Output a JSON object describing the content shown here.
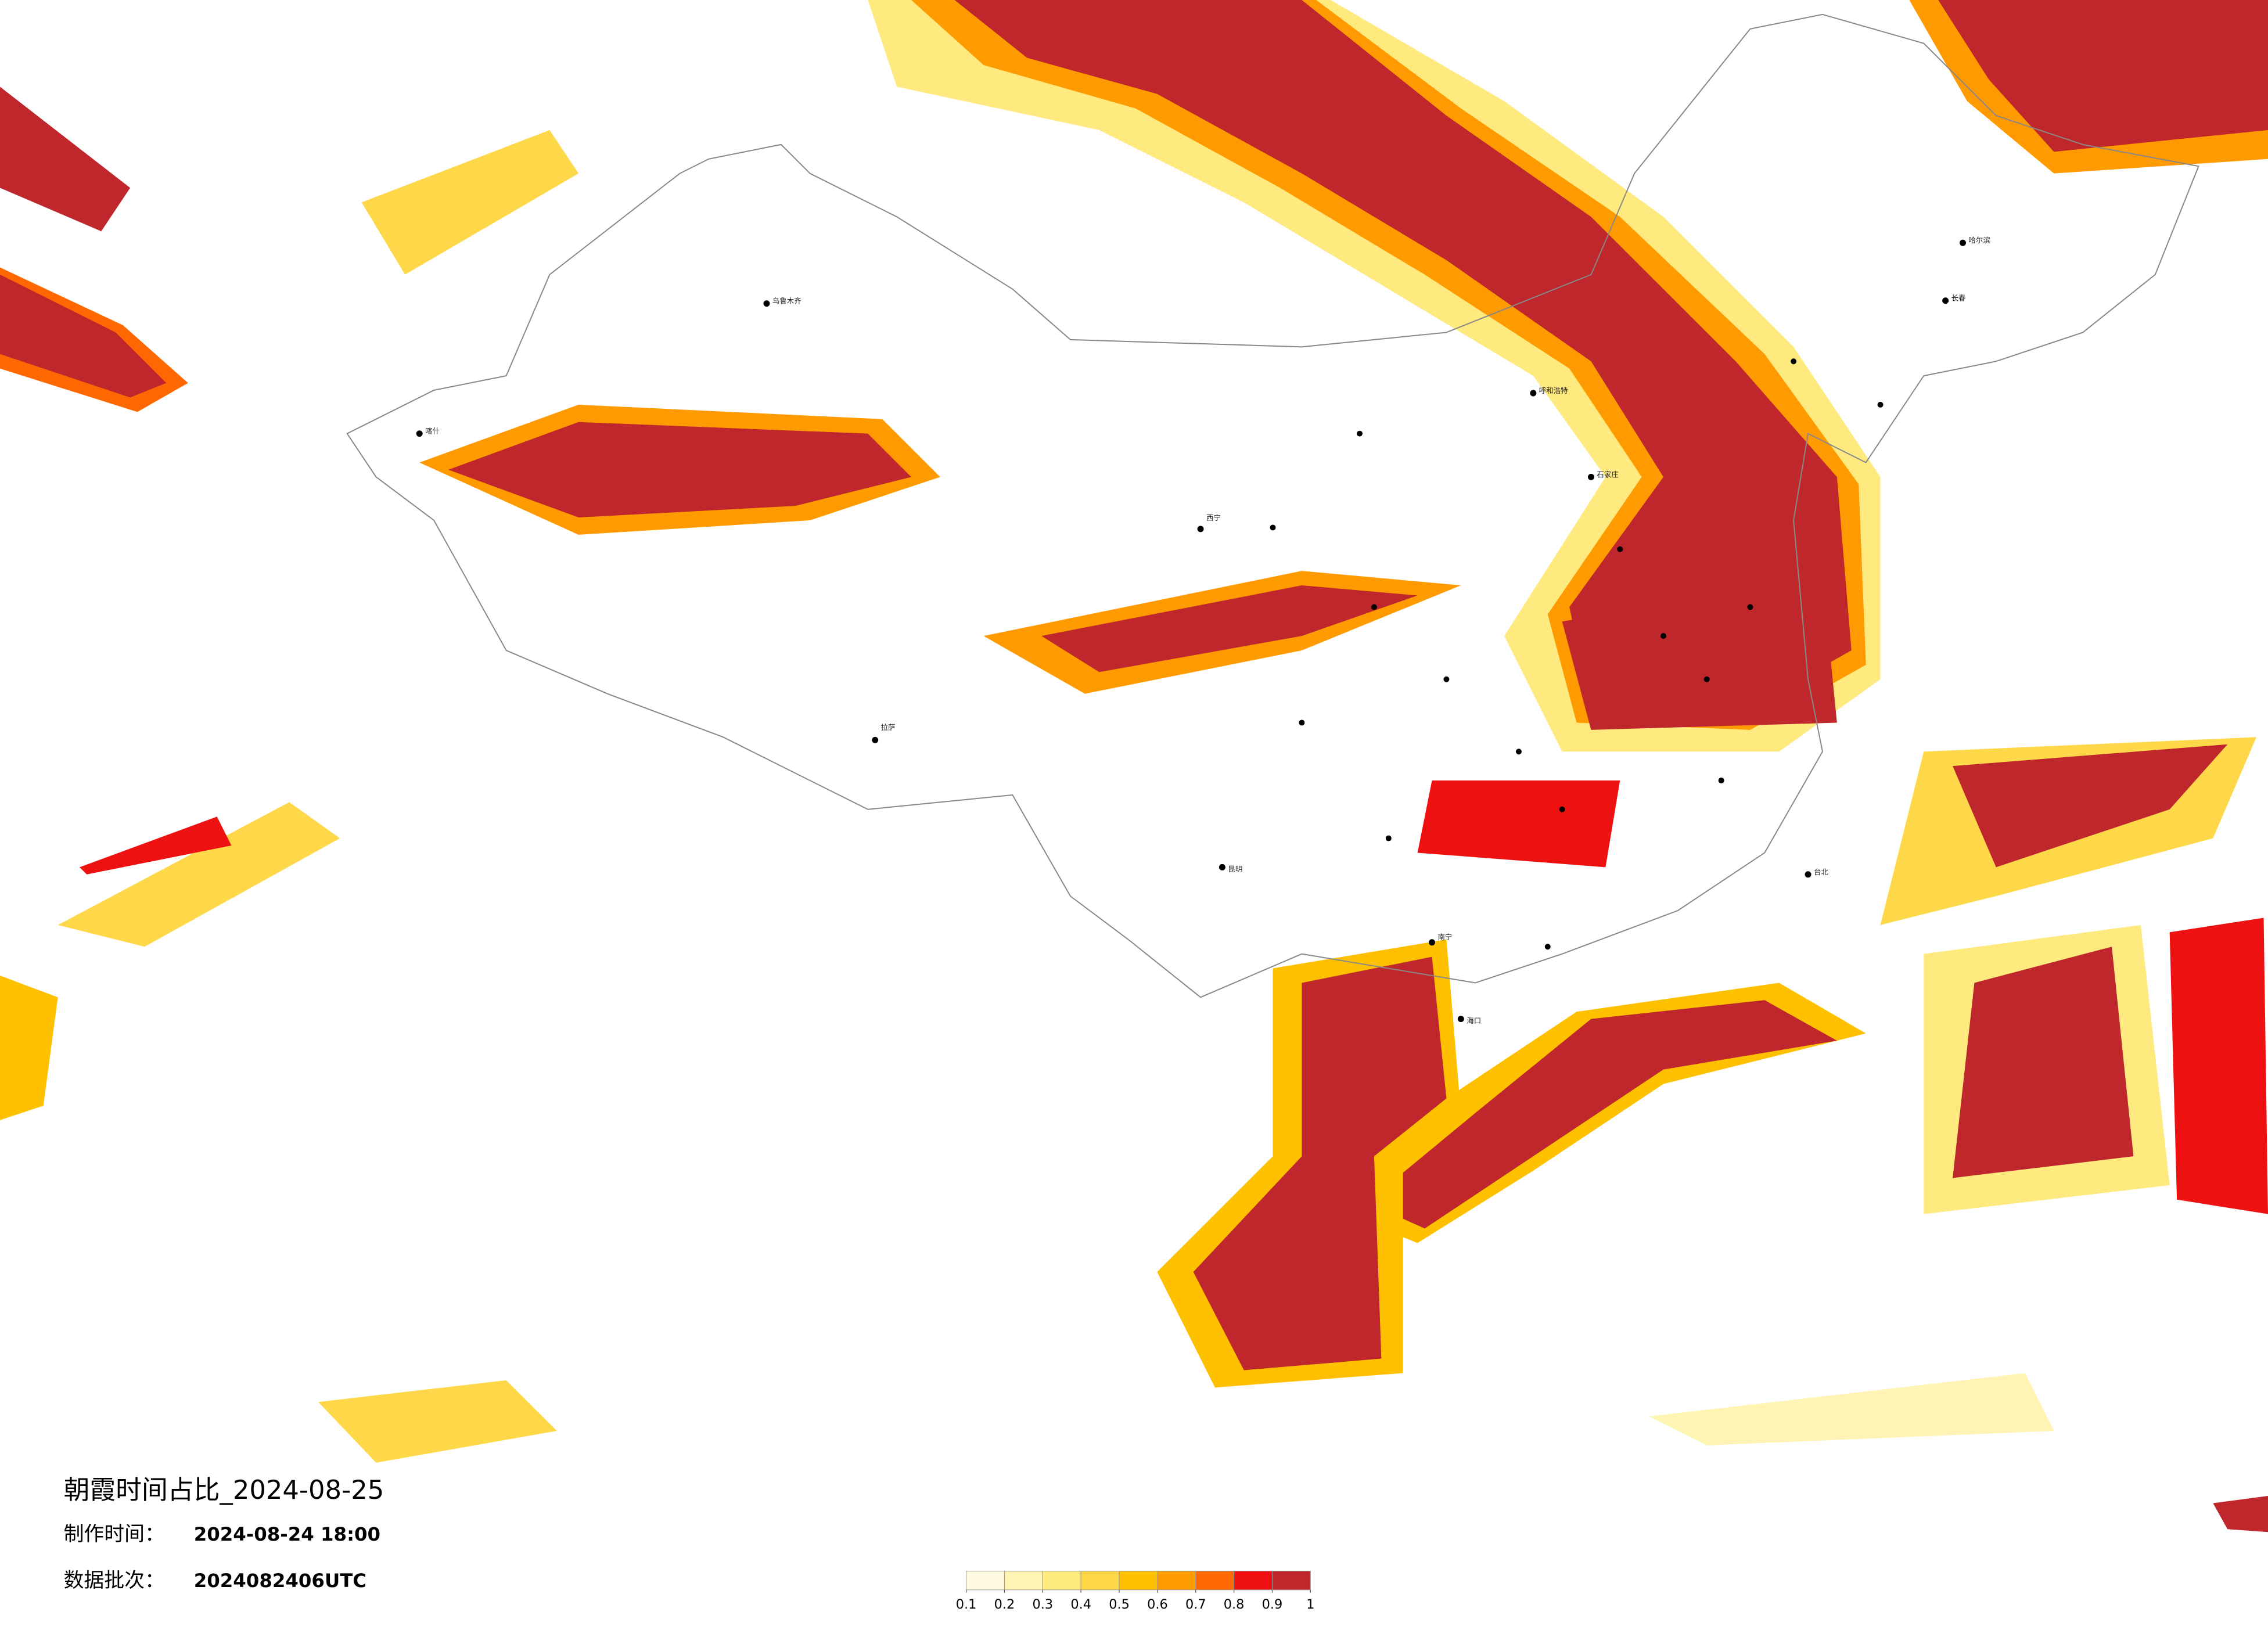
{
  "title": "朝霞时间占比_2024-08-25",
  "made_time": {
    "label": "制作时间：",
    "value": "2024-08-24 18:00"
  },
  "batch": {
    "label": "数据批次：",
    "value": "2024082406UTC"
  },
  "colorbar": {
    "ticks": [
      0.1,
      0.2,
      0.3,
      0.4,
      0.5,
      0.6,
      0.7,
      0.8,
      0.9,
      1
    ],
    "colors": [
      "#fffbe0",
      "#fff4b3",
      "#ffea80",
      "#ffd84a",
      "#ffc000",
      "#ff9a00",
      "#ff6800",
      "#ee1111",
      "#bf272d"
    ]
  },
  "cities": [
    "哈尔滨",
    "长春",
    "乌鲁木齐",
    "拉萨",
    "西宁",
    "昆明",
    "南宁",
    "海口",
    "台北",
    "石家庄",
    "呼和浩特",
    "喀什"
  ]
}
